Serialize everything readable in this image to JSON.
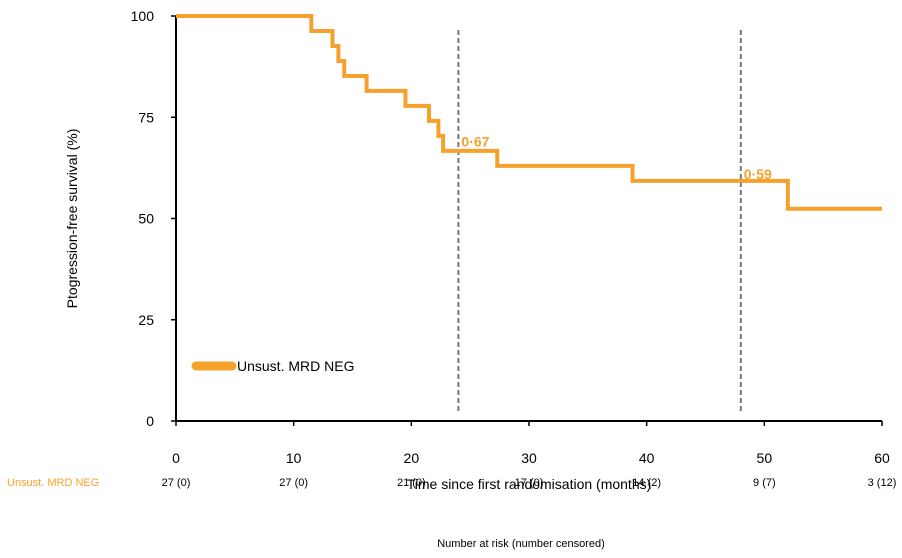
{
  "chart_data": {
    "type": "line",
    "title": "",
    "xlabel": "Time since first randomisation (months)",
    "ylabel": "Ptogression-free survival (%)",
    "xlim": [
      0,
      60
    ],
    "ylim": [
      0,
      100
    ],
    "xticks": [
      "0",
      "10",
      "20",
      "30",
      "40",
      "50",
      "60"
    ],
    "yticks": [
      "0",
      "25",
      "50",
      "75",
      "100"
    ],
    "grid": false,
    "legend_position": "lower-left",
    "series": [
      {
        "name": "Unsust. MRD NEG",
        "color": "#F7A12D",
        "step": true,
        "x": [
          0,
          11.5,
          13.3,
          13.8,
          14.3,
          16.2,
          19.5,
          21.5,
          22.3,
          22.7,
          27.3,
          38.8,
          52.0,
          60
        ],
        "y": [
          100,
          96.3,
          92.6,
          88.9,
          85.2,
          81.5,
          77.8,
          74.1,
          70.4,
          66.7,
          63.0,
          59.3,
          52.4,
          52.4
        ]
      }
    ],
    "reference_lines": [
      {
        "x": 24,
        "label": "0·67",
        "label_y": 67
      },
      {
        "x": 48,
        "label": "0·59",
        "label_y": 59
      }
    ]
  },
  "risk_table": {
    "row_label": "Unsust.  MRD NEG",
    "row_color": "#F7A12D",
    "values": [
      "27 (0)",
      "27 (0)",
      "21 (0)",
      "17 (0)",
      "14 (2)",
      "9 (7)",
      "3 (12)"
    ],
    "caption": "Number at risk  (number censored)"
  }
}
